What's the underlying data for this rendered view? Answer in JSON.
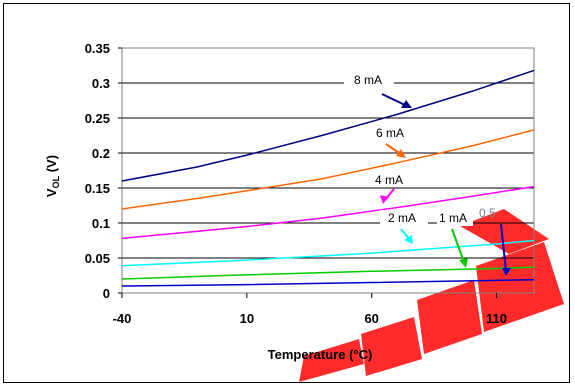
{
  "chart_data": {
    "type": "line",
    "xlabel": "Temperature (°C)",
    "ylabel_main": "V",
    "ylabel_sub": "OL",
    "ylabel_suffix": " (V)",
    "xlim": [
      -40,
      125
    ],
    "ylim": [
      0,
      0.35
    ],
    "x_ticks": [
      -40,
      10,
      60,
      110
    ],
    "x_tick_labels": [
      "-40",
      "10",
      "60",
      "110"
    ],
    "y_ticks": [
      0,
      0.05,
      0.1,
      0.15,
      0.2,
      0.25,
      0.3,
      0.35
    ],
    "y_tick_labels": [
      "0",
      "0.05",
      "0.1",
      "0.15",
      "0.2",
      "0.25",
      "0.3",
      "0.35"
    ],
    "grid": true,
    "series": [
      {
        "name": "8 mA",
        "color": "#000080",
        "x": [
          -40,
          -10,
          10,
          40,
          70,
          100,
          125
        ],
        "y": [
          0.16,
          0.18,
          0.197,
          0.225,
          0.255,
          0.288,
          0.318
        ]
      },
      {
        "name": "6 mA",
        "color": "#FF6600",
        "x": [
          -40,
          -10,
          10,
          40,
          70,
          100,
          125
        ],
        "y": [
          0.12,
          0.135,
          0.146,
          0.163,
          0.186,
          0.21,
          0.233
        ]
      },
      {
        "name": "4 mA",
        "color": "#FF00FF",
        "x": [
          -40,
          -10,
          10,
          40,
          70,
          100,
          125
        ],
        "y": [
          0.078,
          0.088,
          0.095,
          0.107,
          0.122,
          0.138,
          0.152
        ]
      },
      {
        "name": "2 mA",
        "color": "#00FFFF",
        "x": [
          -40,
          10,
          60,
          110,
          125
        ],
        "y": [
          0.039,
          0.047,
          0.057,
          0.07,
          0.075
        ]
      },
      {
        "name": "1 mA",
        "color": "#00CC00",
        "x": [
          -40,
          10,
          60,
          110,
          125
        ],
        "y": [
          0.02,
          0.026,
          0.031,
          0.035,
          0.037
        ]
      },
      {
        "name": "0.5",
        "color": "#0000CC",
        "x": [
          -40,
          10,
          60,
          110,
          125
        ],
        "y": [
          0.01,
          0.012,
          0.015,
          0.018,
          0.019
        ]
      }
    ]
  }
}
